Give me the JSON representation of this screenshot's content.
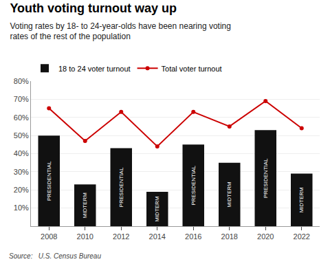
{
  "chart_data": {
    "type": "bar",
    "title": "Youth voting turnout way up",
    "subtitle": "Voting rates by 18- to 24-year-olds have been nearing voting\nrates of the rest of the population",
    "annotations": [
      "Source:   U.S. Census Bureau"
    ],
    "categories": [
      "2008",
      "2010",
      "2012",
      "2014",
      "2016",
      "2018",
      "2020",
      "2022"
    ],
    "series": [
      {
        "name": "18 to 24 voter turnout",
        "type": "bar",
        "color": "#111111",
        "values": [
          50,
          23,
          43,
          19,
          45,
          35,
          53,
          29
        ],
        "labels": [
          "PRESIDENTIAL",
          "MIDTERM",
          "PRESIDENTIAL",
          "MIDTERM",
          "PRESIDENTIAL",
          "MIDTERM",
          "PRESIDENTIAL",
          "MIDTERM"
        ]
      },
      {
        "name": "Total voter turnout",
        "type": "line",
        "color": "#cc0000",
        "marker": "circle",
        "values": [
          65,
          47,
          63,
          44,
          63,
          55,
          69,
          54
        ]
      }
    ],
    "ylim": [
      0,
      80
    ],
    "yticks": [
      {
        "value": 10,
        "label": "10%"
      },
      {
        "value": 20,
        "label": "20%"
      },
      {
        "value": 30,
        "label": "30%"
      },
      {
        "value": 40,
        "label": "40%"
      },
      {
        "value": 50,
        "label": "50%"
      },
      {
        "value": 60,
        "label": "60%"
      },
      {
        "value": 70,
        "label": "70%"
      },
      {
        "value": 80,
        "label": "80%"
      }
    ],
    "grid": true,
    "legend": "top"
  }
}
